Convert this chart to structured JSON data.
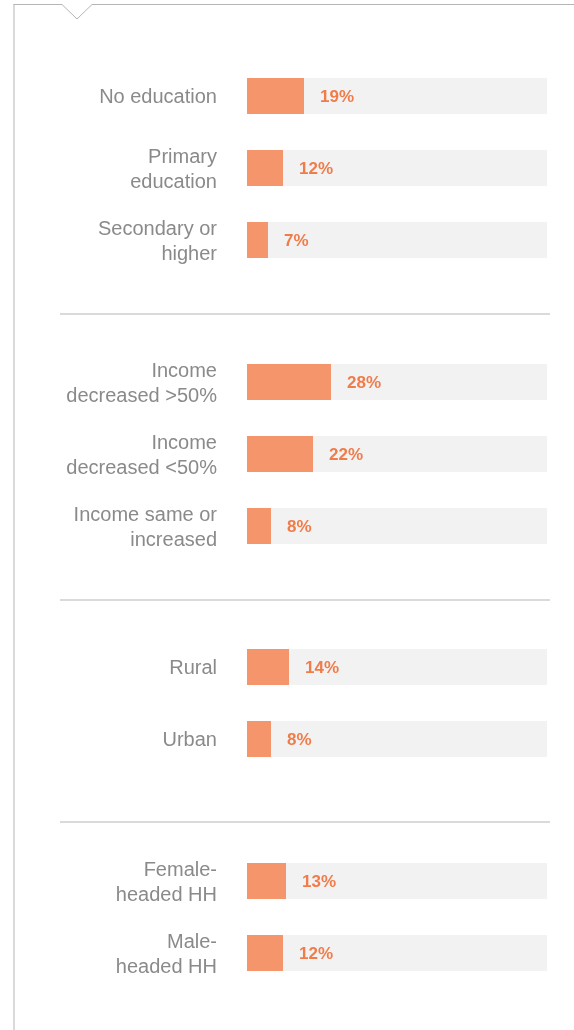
{
  "chart_data": [
    {
      "type": "bar",
      "orientation": "horizontal",
      "categories": [
        "No education",
        "Primary education",
        "Secondary or higher"
      ],
      "values": [
        19,
        12,
        7
      ],
      "value_labels": [
        "19%",
        "12%",
        "7%"
      ],
      "color": "#f5956b",
      "xlim": [
        0,
        100
      ]
    },
    {
      "type": "bar",
      "orientation": "horizontal",
      "categories": [
        "Income decreased >50%",
        "Income decreased <50%",
        "Income same or increased"
      ],
      "values": [
        28,
        22,
        8
      ],
      "value_labels": [
        "28%",
        "22%",
        "8%"
      ],
      "color": "#f5956b",
      "xlim": [
        0,
        100
      ]
    },
    {
      "type": "bar",
      "orientation": "horizontal",
      "categories": [
        "Rural",
        "Urban"
      ],
      "values": [
        14,
        8
      ],
      "value_labels": [
        "14%",
        "8%"
      ],
      "color": "#f5956b",
      "xlim": [
        0,
        100
      ]
    },
    {
      "type": "bar",
      "orientation": "horizontal",
      "categories": [
        "Female-headed HH",
        "Male-headed HH"
      ],
      "values": [
        13,
        12
      ],
      "value_labels": [
        "13%",
        "12%"
      ],
      "color": "#f5956b",
      "xlim": [
        0,
        100
      ]
    }
  ]
}
